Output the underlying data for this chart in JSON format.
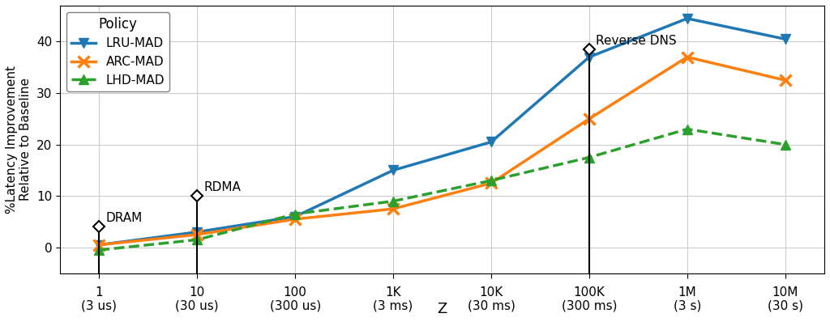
{
  "x_labels_top": [
    "1",
    "10",
    "100",
    "1K",
    "10K",
    "100K",
    "1M",
    "10M"
  ],
  "x_labels_bot": [
    "(3 us)",
    "(30 us)",
    "(300 us)",
    "(3 ms)",
    "(30 ms)",
    "(300 ms)",
    "(3 s)",
    "(30 s)"
  ],
  "x_values": [
    0,
    1,
    2,
    3,
    4,
    5,
    6,
    7
  ],
  "lru_mad": [
    0.5,
    3.0,
    6.0,
    15.0,
    20.5,
    37.0,
    44.5,
    40.5
  ],
  "arc_mad": [
    0.5,
    2.5,
    5.5,
    7.5,
    12.5,
    25.0,
    37.0,
    32.5
  ],
  "lhd_mad": [
    -0.5,
    1.5,
    6.5,
    9.0,
    13.0,
    17.5,
    23.0,
    20.0
  ],
  "lru_color": "#1f77b4",
  "arc_color": "#ff7f0e",
  "lhd_color": "#2ca02c",
  "ylabel": "%Latency Improvement\nRelative to Baseline",
  "xlabel": "Z",
  "ylim": [
    -5,
    47
  ],
  "xlim": [
    -0.4,
    7.4
  ],
  "dram_x": 0,
  "dram_y": 4.0,
  "dram_label": "DRAM",
  "rdma_x": 1,
  "rdma_y": 10.0,
  "rdma_label": "RDMA",
  "rdns_x": 5,
  "rdns_y": 38.5,
  "rdns_label": "Reverse DNS",
  "background_color": "#ffffff",
  "grid_color": "#cccccc",
  "legend_title": "Policy",
  "legend_labels": [
    "LRU-MAD",
    "ARC-MAD",
    "LHD-MAD"
  ],
  "yticks": [
    0,
    10,
    20,
    30,
    40
  ]
}
